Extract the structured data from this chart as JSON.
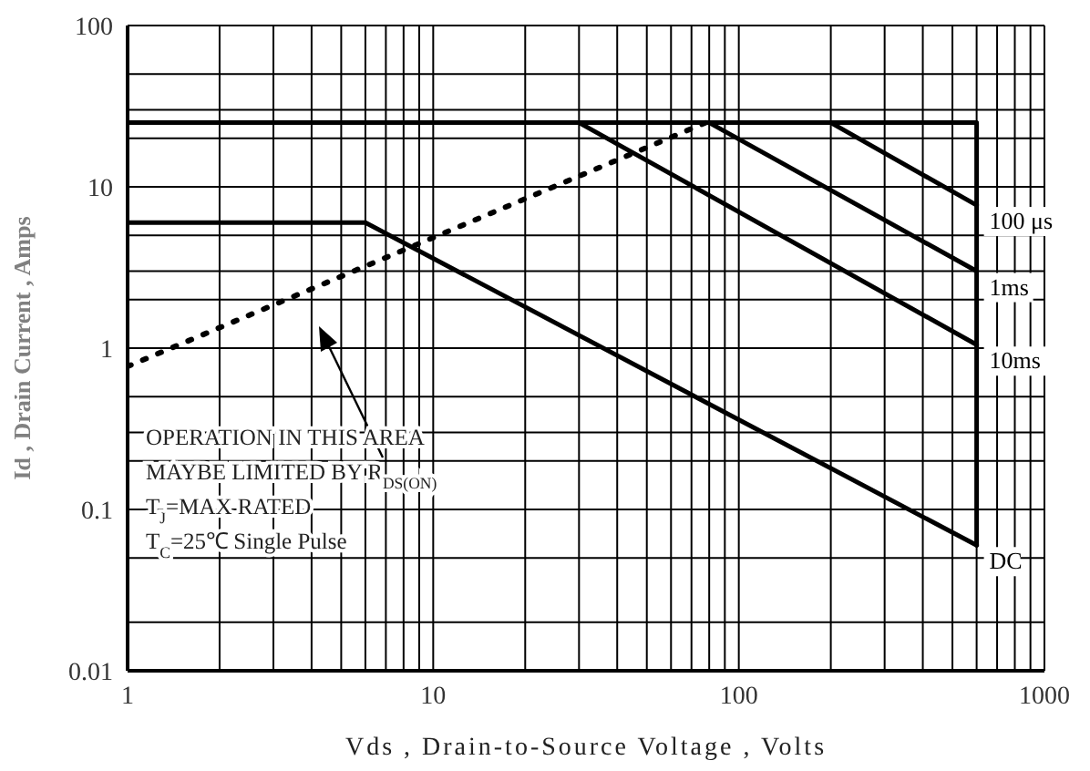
{
  "chart_data": {
    "type": "line",
    "xlabel": "Vds , Drain-to-Source Voltage , Volts",
    "ylabel": "Id , Drain Current , Amps",
    "log": "xy",
    "grid": true,
    "legend": false,
    "marker": "none",
    "xlim": [
      1,
      1000
    ],
    "ylim": [
      0.01,
      100
    ],
    "xticks": [
      1,
      {
        "value": 2,
        "label": null
      },
      {
        "value": 3,
        "label": null
      },
      {
        "value": 4,
        "label": null
      },
      {
        "value": 5,
        "label": null
      },
      {
        "value": 6,
        "label": null
      },
      {
        "value": 7,
        "label": null
      },
      {
        "value": 8,
        "label": null
      },
      {
        "value": 9,
        "label": null
      },
      10,
      {
        "value": 20,
        "label": null
      },
      {
        "value": 30,
        "label": null
      },
      {
        "value": 40,
        "label": null
      },
      {
        "value": 50,
        "label": null
      },
      {
        "value": 60,
        "label": null
      },
      {
        "value": 70,
        "label": null
      },
      {
        "value": 80,
        "label": null
      },
      {
        "value": 90,
        "label": null
      },
      100,
      {
        "value": 200,
        "label": null
      },
      {
        "value": 300,
        "label": null
      },
      {
        "value": 400,
        "label": null
      },
      {
        "value": 500,
        "label": null
      },
      {
        "value": 600,
        "label": null
      },
      {
        "value": 700,
        "label": null
      },
      {
        "value": 800,
        "label": null
      },
      {
        "value": 900,
        "label": null
      },
      1000
    ],
    "yticks": [
      0.01,
      {
        "value": 0.02,
        "label": null
      },
      {
        "value": 0.05,
        "label": null
      },
      0.1,
      {
        "value": 0.2,
        "label": null
      },
      {
        "value": 0.3,
        "label": null
      },
      {
        "value": 0.5,
        "label": null
      },
      1,
      {
        "value": 2,
        "label": null
      },
      {
        "value": 3,
        "label": null
      },
      {
        "value": 5,
        "label": null
      },
      10,
      {
        "value": 20,
        "label": null
      },
      {
        "value": 30,
        "label": null
      },
      {
        "value": 50,
        "label": null
      },
      100
    ],
    "series": [
      {
        "color": "#000000",
        "line_style": "dotted",
        "x": [
          1,
          78
        ],
        "values": [
          0.77,
          25
        ]
      },
      {
        "color": "#000000",
        "x": [
          1,
          600,
          600
        ],
        "values": [
          25,
          25,
          0.06
        ]
      },
      {
        "name": "100 μs",
        "color": "#000000",
        "x": [
          200,
          600
        ],
        "values": [
          25,
          7.7
        ]
      },
      {
        "name": "1ms",
        "color": "#000000",
        "x": [
          80,
          600
        ],
        "values": [
          25,
          3
        ]
      },
      {
        "name": "10ms",
        "color": "#000000",
        "x": [
          30,
          600
        ],
        "values": [
          25,
          1.05
        ]
      },
      {
        "name": "DC",
        "color": "#000000",
        "x": [
          1,
          6,
          600
        ],
        "values": [
          6,
          6,
          0.06
        ]
      }
    ],
    "annotations": [
      "OPERATION IN THIS AREA",
      "MAYBE LIMITED BY R$_{DS(ON)}$",
      "T$_{J}$=MAX RATED",
      "T$_{C}$=25℃  Single Pulse"
    ]
  }
}
